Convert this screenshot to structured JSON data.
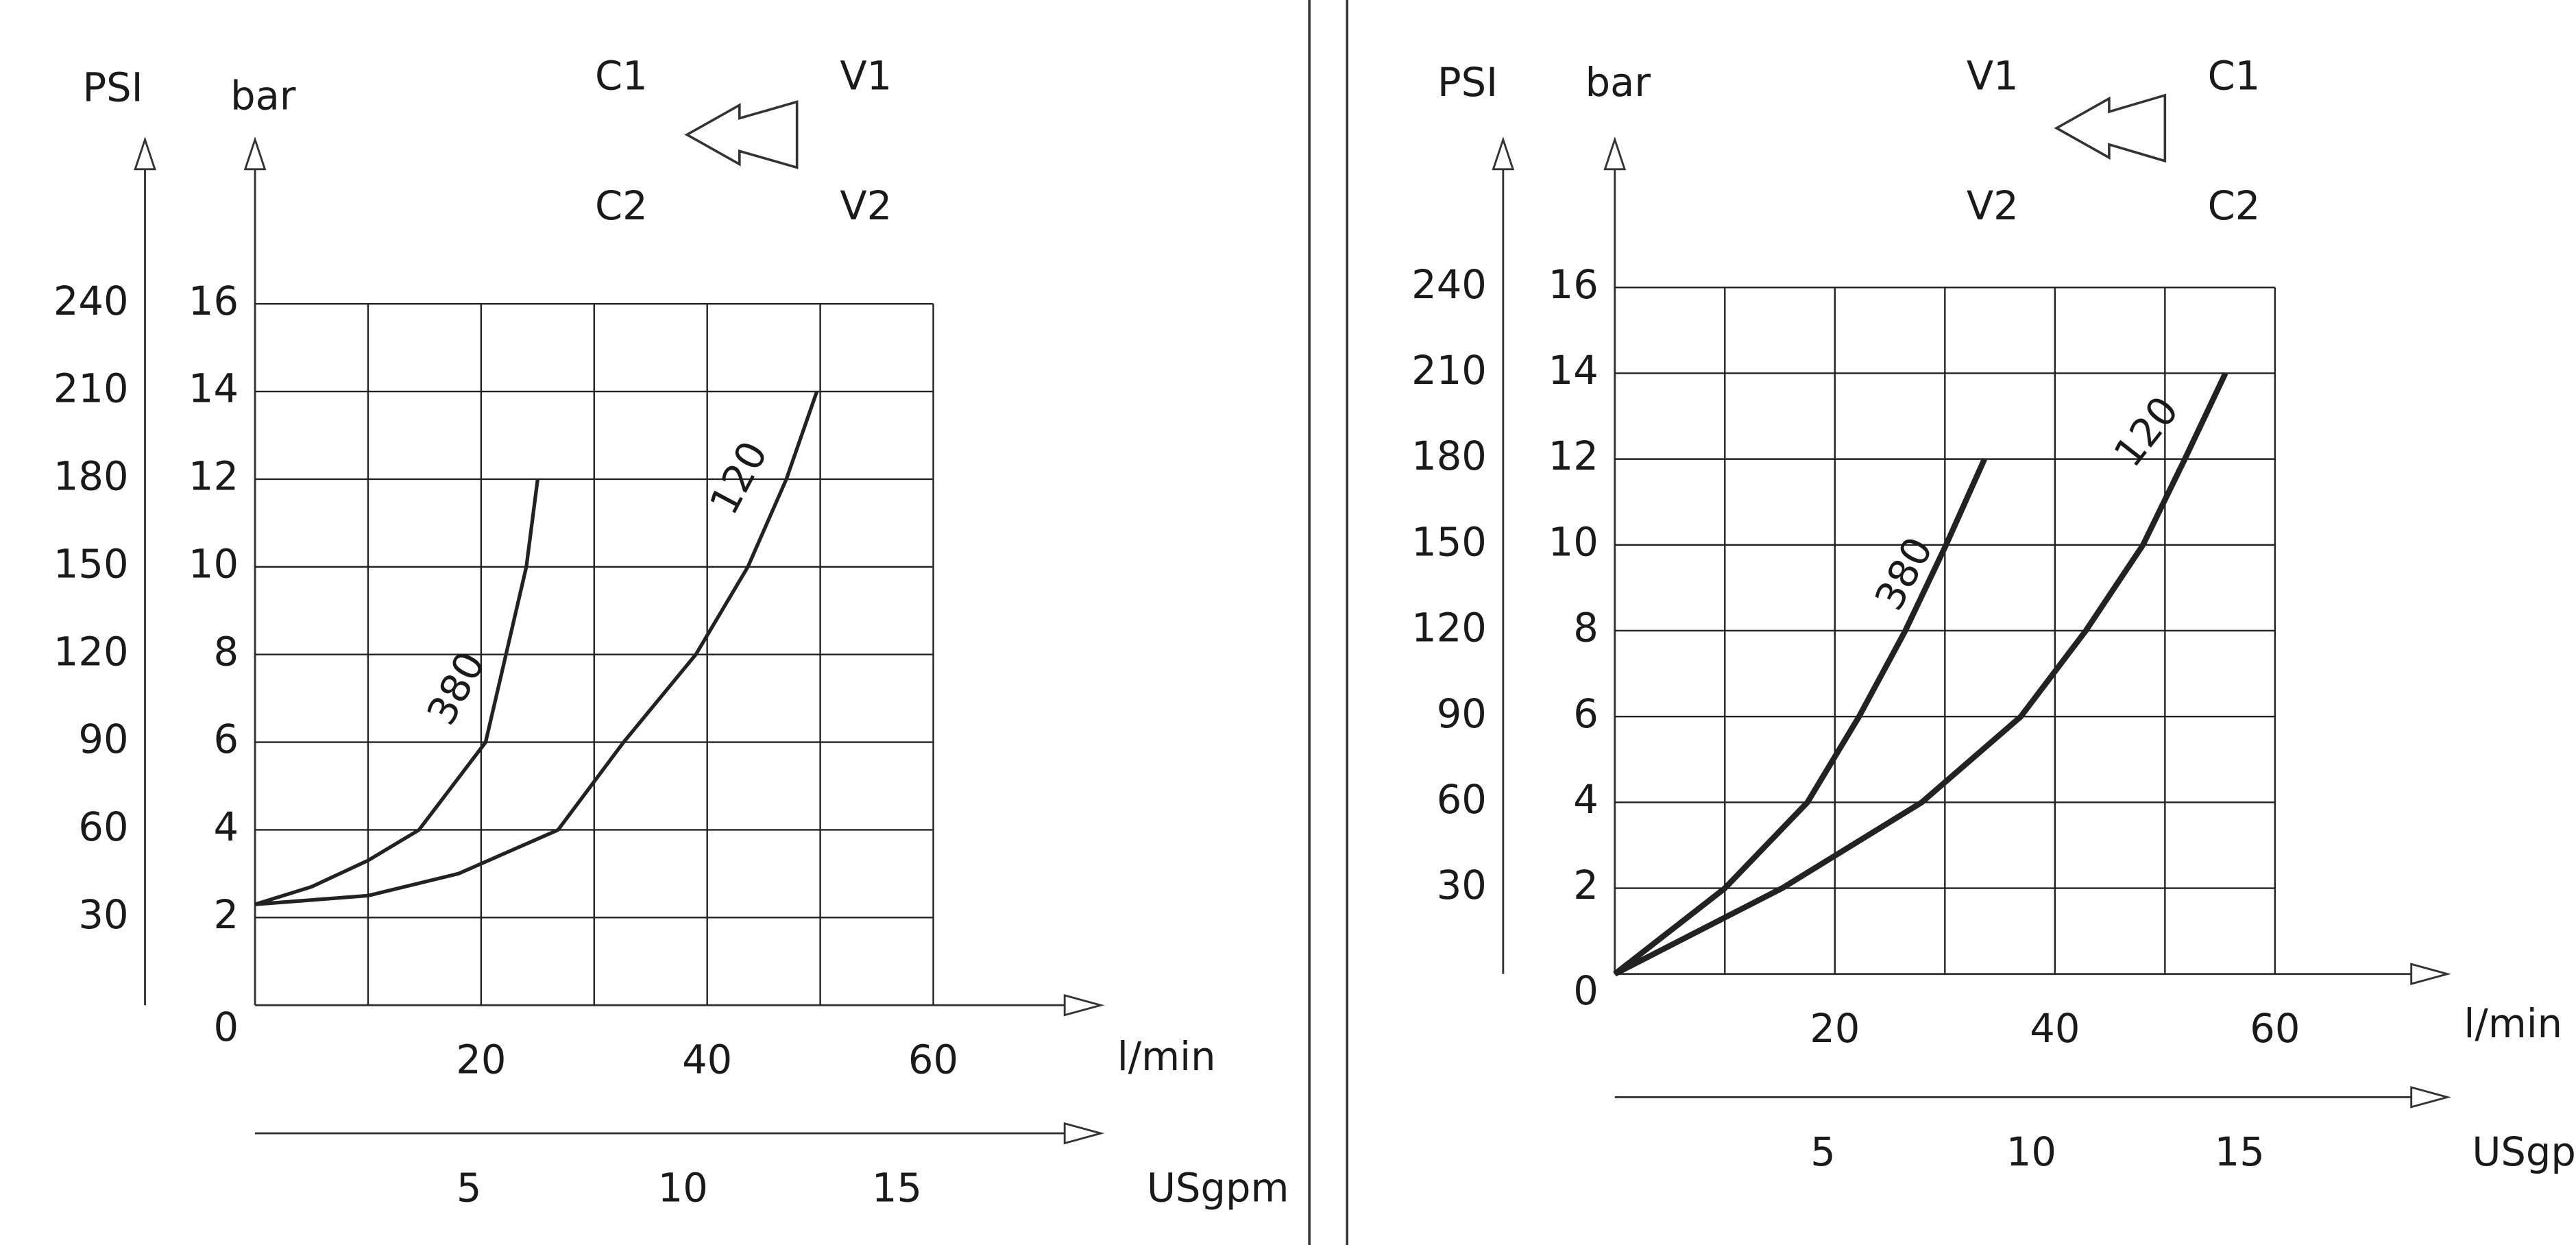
{
  "chart_data": [
    {
      "type": "line",
      "y2_label": "PSI",
      "y_label": "bar",
      "x_label": "l/min",
      "x2_label": "USgpm",
      "ports": [
        "C1",
        "V1",
        "C2",
        "V2"
      ],
      "xlim": [
        0,
        60
      ],
      "xticks": [
        20,
        40,
        60
      ],
      "grid_x": [
        10,
        20,
        30,
        40,
        50,
        60
      ],
      "x2lim": [
        0,
        15.85
      ],
      "x2ticks": [
        5,
        10,
        15
      ],
      "ylim": [
        0,
        16
      ],
      "yticks": [
        0,
        2,
        4,
        6,
        8,
        10,
        12,
        14,
        16
      ],
      "y2lim": [
        0,
        240
      ],
      "y2ticks": [
        30,
        60,
        90,
        120,
        150,
        180,
        210,
        240
      ],
      "grid": true,
      "series": [
        {
          "name": "380",
          "color": "#222222",
          "x": [
            0,
            5,
            10,
            14.5,
            20.4,
            22.2,
            24,
            25
          ],
          "values": [
            2.3,
            2.7,
            3.3,
            4,
            6,
            8,
            10,
            12
          ]
        },
        {
          "name": "120",
          "color": "#222222",
          "x": [
            0,
            10,
            18,
            26.8,
            32.6,
            39,
            43.6,
            47,
            49.7
          ],
          "values": [
            2.3,
            2.5,
            3,
            4,
            6,
            8,
            10,
            12,
            14
          ]
        }
      ]
    },
    {
      "type": "line",
      "y2_label": "PSI",
      "y_label": "bar",
      "x_label": "l/min",
      "x2_label": "USgpm",
      "ports": [
        "V1",
        "C1",
        "V2",
        "C2"
      ],
      "xlim": [
        0,
        60
      ],
      "xticks": [
        20,
        40,
        60
      ],
      "grid_x": [
        10,
        20,
        30,
        40,
        50,
        60
      ],
      "x2lim": [
        0,
        15.85
      ],
      "x2ticks": [
        5,
        10,
        15
      ],
      "ylim": [
        0,
        16
      ],
      "yticks": [
        0,
        2,
        4,
        6,
        8,
        10,
        12,
        14,
        16
      ],
      "y2lim": [
        0,
        240
      ],
      "y2ticks": [
        30,
        60,
        90,
        120,
        150,
        180,
        210,
        240
      ],
      "grid": true,
      "series": [
        {
          "name": "380",
          "color": "#222222",
          "x": [
            0,
            10,
            17.5,
            22.2,
            26.4,
            30.1,
            33.6
          ],
          "values": [
            0,
            2,
            4,
            6,
            8,
            10,
            12
          ]
        },
        {
          "name": "120",
          "color": "#222222",
          "x": [
            0,
            15.2,
            27.9,
            36.9,
            42.8,
            48,
            51.8,
            55.5
          ],
          "values": [
            0,
            2,
            4,
            6,
            8,
            10,
            12,
            14
          ]
        }
      ]
    }
  ]
}
